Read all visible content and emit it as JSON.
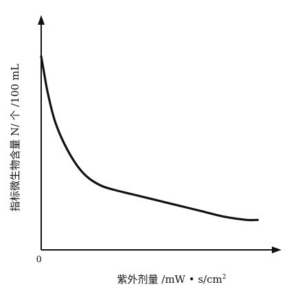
{
  "chart_data": {
    "type": "line",
    "title": "",
    "xlabel": "紫外剂量 /mW • s/cm",
    "xlabel_superscript": "2",
    "ylabel": "指标微生物含量 N/ 个 /100 mL",
    "origin_label": "0",
    "axis_color": "#111111",
    "line_color": "#111111",
    "grid": false,
    "xlim": [
      0,
      10
    ],
    "ylim": [
      0,
      10
    ],
    "series": [
      {
        "x": [
          0,
          0.12,
          0.3,
          0.6,
          1.0,
          1.5,
          2.0,
          2.6,
          3.2,
          4.0,
          5.0,
          6.0,
          7.0,
          8.0,
          9.0,
          9.5
        ],
        "values": [
          8.7,
          8.0,
          7.0,
          5.8,
          4.8,
          3.9,
          3.3,
          2.9,
          2.7,
          2.5,
          2.25,
          2.0,
          1.75,
          1.5,
          1.35,
          1.35
        ]
      }
    ]
  }
}
